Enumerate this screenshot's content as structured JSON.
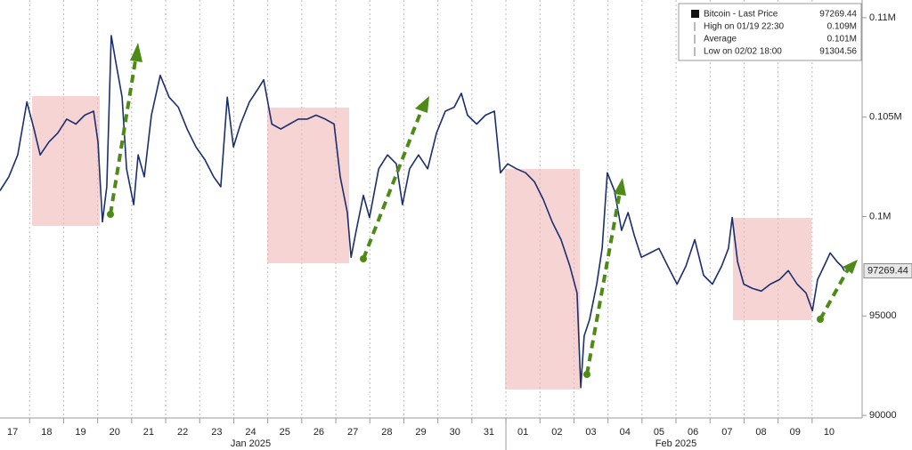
{
  "chart_data": {
    "type": "line",
    "series": [
      {
        "name": "Bitcoin - Last Price",
        "color": "#1b2f6e",
        "x": [
          0.13,
          0.39,
          0.65,
          0.92,
          1.13,
          1.31,
          1.57,
          1.83,
          2.09,
          2.36,
          2.62,
          2.88,
          3.01,
          3.14,
          3.27,
          3.4,
          3.53,
          3.72,
          3.85,
          4.06,
          4.19,
          4.37,
          4.58,
          4.84,
          5.1,
          5.37,
          5.63,
          5.89,
          6.15,
          6.41,
          6.62,
          6.81,
          6.99,
          7.2,
          7.46,
          7.72,
          7.88,
          8.12,
          8.38,
          8.64,
          8.9,
          9.16,
          9.42,
          9.69,
          9.95,
          10.13,
          10.34,
          10.45,
          10.6,
          10.81,
          10.99,
          11.26,
          11.52,
          11.78,
          11.96,
          12.17,
          12.43,
          12.7,
          12.96,
          13.22,
          13.48,
          13.69,
          13.87,
          14.14,
          14.4,
          14.66,
          14.84,
          15.05,
          15.31,
          15.58,
          15.84,
          16.1,
          16.36,
          16.62,
          16.88,
          17.09,
          17.2,
          17.3,
          17.46,
          17.67,
          17.83,
          17.98,
          18.19,
          18.4,
          18.59,
          18.77,
          18.98,
          19.24,
          19.5,
          19.76,
          20.03,
          20.29,
          20.55,
          20.81,
          21.07,
          21.34,
          21.54,
          21.65,
          21.81,
          21.99,
          22.25,
          22.51,
          22.77,
          23.04,
          23.3,
          23.56,
          23.82,
          24.01,
          24.16,
          24.35,
          24.53,
          24.74,
          24.87,
          24.95
        ],
        "values": [
          101300,
          102000,
          103100,
          105760,
          104400,
          103100,
          103750,
          104200,
          104900,
          104650,
          105100,
          105300,
          103750,
          99730,
          101500,
          109100,
          107800,
          106000,
          102400,
          100600,
          103100,
          102000,
          105100,
          107100,
          106000,
          105500,
          104400,
          103500,
          102860,
          102000,
          101500,
          106000,
          103500,
          104650,
          105760,
          106430,
          106880,
          104650,
          104400,
          104650,
          104900,
          104900,
          105100,
          104900,
          104650,
          102000,
          100200,
          97950,
          99300,
          101070,
          99950,
          102400,
          103100,
          102650,
          100600,
          102400,
          103100,
          102400,
          104200,
          105300,
          105500,
          106200,
          105100,
          104650,
          105100,
          105300,
          102200,
          102650,
          102400,
          102200,
          101750,
          100850,
          99730,
          98840,
          97500,
          96160,
          91400,
          94000,
          94820,
          96600,
          98400,
          102200,
          101300,
          99300,
          100200,
          99060,
          97950,
          98170,
          98400,
          97500,
          96600,
          97500,
          98840,
          97050,
          96600,
          97500,
          98400,
          99950,
          97720,
          96600,
          96380,
          96250,
          96600,
          96830,
          97280,
          96600,
          96160,
          95270,
          96830,
          97500,
          98170,
          97720,
          97500,
          97269.44
        ]
      }
    ],
    "legend": [
      {
        "label": "Bitcoin - Last Price",
        "value": 97269.44
      },
      {
        "label": "High on 01/19 22:30",
        "value": 109000,
        "value_label": "0.109M"
      },
      {
        "label": "Average",
        "value": 101000,
        "value_label": "0.101M"
      },
      {
        "label": "Low on 02/02 18:00",
        "value": 91304.56
      }
    ],
    "xlim": [
      0.13,
      25.47
    ],
    "xticks": [
      {
        "value": 0,
        "label": "17"
      },
      {
        "value": 1,
        "label": "18"
      },
      {
        "value": 2,
        "label": "19"
      },
      {
        "value": 3,
        "label": "20"
      },
      {
        "value": 4,
        "label": "21"
      },
      {
        "value": 5,
        "label": "22"
      },
      {
        "value": 6,
        "label": "23"
      },
      {
        "value": 7,
        "label": "24"
      },
      {
        "value": 8,
        "label": "25"
      },
      {
        "value": 9,
        "label": "26"
      },
      {
        "value": 10,
        "label": "27"
      },
      {
        "value": 11,
        "label": "28"
      },
      {
        "value": 12,
        "label": "29"
      },
      {
        "value": 13,
        "label": "30"
      },
      {
        "value": 14,
        "label": "31"
      },
      {
        "value": 15,
        "label": "01"
      },
      {
        "value": 16,
        "label": "02"
      },
      {
        "value": 17,
        "label": "03"
      },
      {
        "value": 18,
        "label": "04"
      },
      {
        "value": 19,
        "label": "05"
      },
      {
        "value": 20,
        "label": "06"
      },
      {
        "value": 21,
        "label": "07"
      },
      {
        "value": 22,
        "label": "08"
      },
      {
        "value": 23,
        "label": "09"
      },
      {
        "value": 24,
        "label": "10"
      }
    ],
    "x_groups": [
      "Jan 2025",
      "Feb 2025"
    ],
    "ylim": [
      89870,
      110890
    ],
    "yticks": [
      {
        "value": 110000,
        "label": "0.11M"
      },
      {
        "value": 105000,
        "label": "0.105M"
      },
      {
        "value": 100000,
        "label": "0.1M"
      },
      95000,
      90000
    ],
    "grid": true
  }
}
